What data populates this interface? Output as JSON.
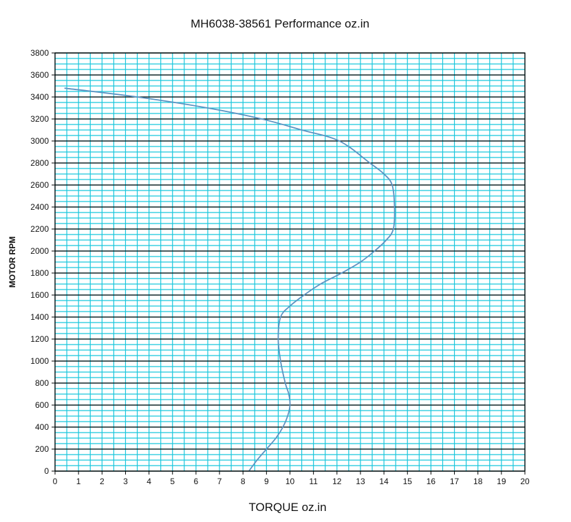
{
  "chart_data": {
    "type": "line",
    "title": "MH6038-38561  Performance oz.in",
    "xlabel": "TORQUE  oz.in",
    "ylabel": "MOTOR RPM",
    "xlim": [
      0,
      20
    ],
    "ylim": [
      0,
      3800
    ],
    "x_ticks": [
      0,
      1,
      2,
      3,
      4,
      5,
      6,
      7,
      8,
      9,
      10,
      11,
      12,
      13,
      14,
      15,
      16,
      17,
      18,
      19,
      20
    ],
    "y_ticks": [
      0,
      200,
      400,
      600,
      800,
      1000,
      1200,
      1400,
      1600,
      1800,
      2000,
      2200,
      2400,
      2600,
      2800,
      3000,
      3200,
      3400,
      3600,
      3800
    ],
    "x_tick_labels": [
      "0",
      "1",
      "2",
      "3",
      "4",
      "5",
      "6",
      "7",
      "8",
      "9",
      "10",
      "11",
      "12",
      "13",
      "14",
      "15",
      "16",
      "17",
      "18",
      "19",
      "20"
    ],
    "y_tick_labels": [
      "0",
      "200",
      "400",
      "600",
      "800",
      "1000",
      "1200",
      "1400",
      "1600",
      "1800",
      "2000",
      "2200",
      "2400",
      "2600",
      "2800",
      "3000",
      "3200",
      "3400",
      "3600",
      "3800"
    ],
    "grid": true,
    "minor_x_step": 0.5,
    "minor_y_step": 50,
    "colors": {
      "background": "#ffffff",
      "plot_background": "#ffffff",
      "minor_grid": "#18c6dc",
      "major_grid": "#000000",
      "line": "#5b93c2",
      "axis": "#000000"
    },
    "series": [
      {
        "x": [
          8.25,
          8.6,
          9.0,
          9.4,
          9.7,
          9.9,
          10.0,
          9.95,
          9.8,
          9.6,
          9.5,
          9.6,
          10.0,
          10.6,
          11.3,
          12.2,
          13.0,
          13.6,
          14.1,
          14.4,
          14.45,
          14.35,
          14.0,
          13.4,
          12.1,
          10.5,
          8.8,
          6.5,
          3.5,
          0.4
        ],
        "y": [
          0,
          100,
          200,
          300,
          400,
          500,
          600,
          700,
          800,
          1000,
          1200,
          1400,
          1500,
          1600,
          1700,
          1800,
          1900,
          2000,
          2100,
          2200,
          2400,
          2600,
          2700,
          2800,
          3000,
          3100,
          3200,
          3300,
          3400,
          3480
        ]
      }
    ]
  }
}
